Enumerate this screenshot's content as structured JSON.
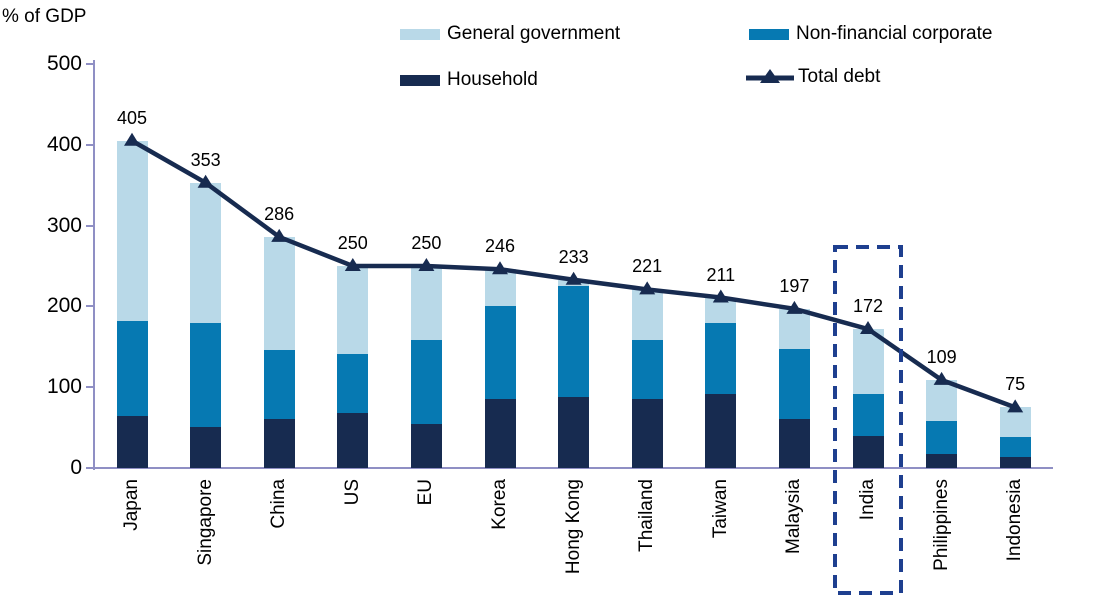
{
  "chart_data": {
    "type": "bar",
    "subtype": "stacked-bar-with-line",
    "ylabel_unit": "% of GDP",
    "categories": [
      "Japan",
      "Singapore",
      "China",
      "US",
      "EU",
      "Korea",
      "Hong Kong",
      "Thailand",
      "Taiwan",
      "Malaysia",
      "India",
      "Philippines",
      "Indonesia"
    ],
    "series": [
      {
        "name": "Household",
        "color": "#172b50",
        "values": [
          64,
          51,
          61,
          68,
          55,
          86,
          88,
          85,
          92,
          61,
          40,
          17,
          13
        ]
      },
      {
        "name": "Non-financial corporate",
        "color": "#0679b2",
        "values": [
          118,
          129,
          85,
          73,
          104,
          114,
          137,
          74,
          88,
          86,
          51,
          41,
          25
        ]
      },
      {
        "name": "General government",
        "color": "#b9d9e8",
        "values": [
          223,
          173,
          140,
          109,
          91,
          46,
          8,
          62,
          31,
          50,
          81,
          51,
          37
        ]
      }
    ],
    "line": {
      "name": "Total debt",
      "color": "#172b50",
      "values": [
        405,
        353,
        286,
        250,
        250,
        246,
        233,
        221,
        211,
        197,
        172,
        109,
        75
      ]
    },
    "value_labels": [
      "405",
      "353",
      "286",
      "250",
      "250",
      "246",
      "233",
      "221",
      "211",
      "197",
      "172",
      "109",
      "75"
    ],
    "ylim": [
      0,
      500
    ],
    "yticks": [
      "0",
      "100",
      "200",
      "300",
      "400",
      "500"
    ],
    "grid": "off",
    "legend_position": "top",
    "highlight_category": "India",
    "colors": {
      "axis": "#8f8fc4",
      "text": "#000000",
      "highlight_box": "#1e3f8f"
    }
  },
  "legend": {
    "items": [
      {
        "label": "General government"
      },
      {
        "label": "Non-financial corporate"
      },
      {
        "label": "Household"
      },
      {
        "label": "Total debt"
      }
    ]
  }
}
